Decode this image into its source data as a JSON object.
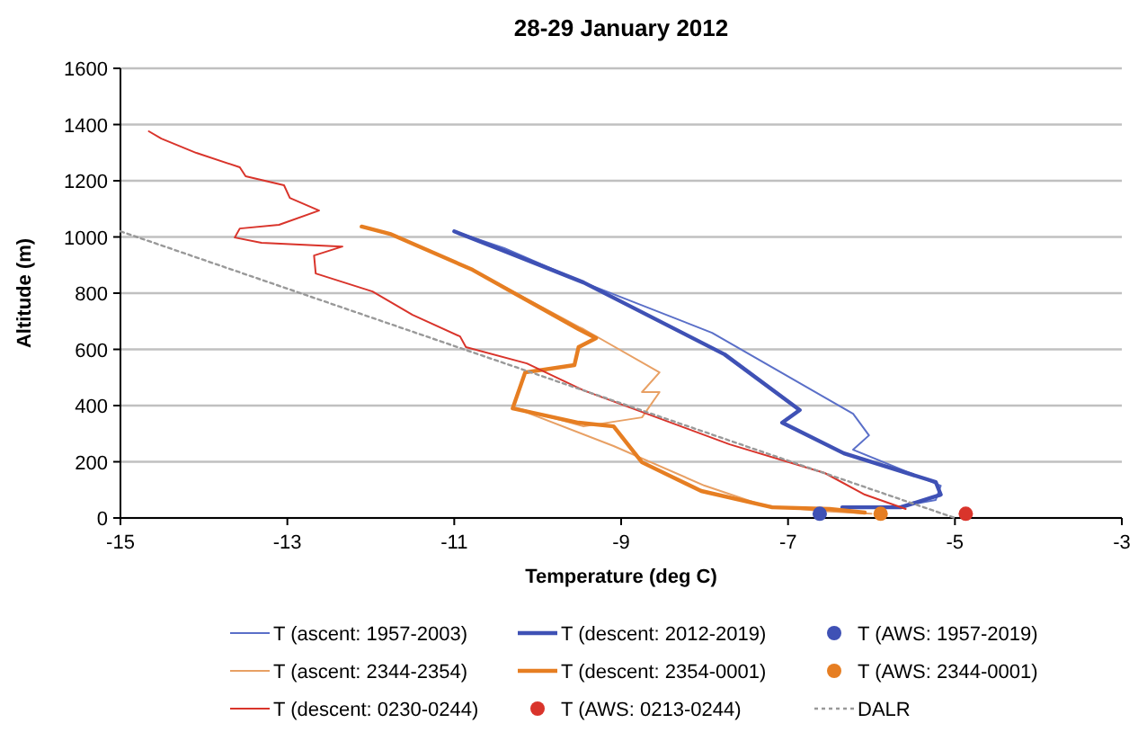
{
  "chart_data": {
    "type": "line",
    "title": "28-29 January 2012",
    "xlabel": "Temperature (deg C)",
    "ylabel": "Altitude (m)",
    "xlim": [
      -15,
      -3
    ],
    "xticks": [
      -15,
      -13,
      -11,
      -9,
      -7,
      -5,
      -3
    ],
    "ylim": [
      0,
      1600
    ],
    "yticks": [
      0,
      200,
      400,
      600,
      800,
      1000,
      1200,
      1400,
      1600
    ],
    "grid": "y",
    "legend": "bottom",
    "line_style": "solid",
    "series": [
      {
        "name": "T (ascent: 1957-2003)",
        "color": "#5a6fc8",
        "x": [
          -11.0,
          -10.4,
          -9.45,
          -7.91,
          -6.22,
          -6.03,
          -6.22,
          -5.17,
          -5.23,
          -5.72
        ],
        "values": [
          1020,
          960,
          838,
          659,
          371,
          294,
          243,
          115,
          64,
          38
        ]
      },
      {
        "name": "T (descent: 2012-2019)",
        "color": "#3f51b5",
        "x": [
          -11.0,
          -10.4,
          -9.45,
          -7.76,
          -6.86,
          -7.07,
          -6.33,
          -5.23,
          -5.17,
          -5.65,
          -6.35
        ],
        "values": [
          1020,
          950,
          838,
          582,
          384,
          339,
          230,
          128,
          83,
          38,
          38
        ]
      },
      {
        "name": "T (AWS: 1957-2019)",
        "type": "scatter",
        "marker": "circle",
        "color": "#3f51b5",
        "x": [
          -6.62
        ],
        "values": [
          15
        ]
      },
      {
        "name": "T (ascent: 2344-2354)",
        "color": "#e8a064",
        "x": [
          -12.11,
          -11.77,
          -10.78,
          -9.51,
          -9.45,
          -8.54,
          -8.75,
          -8.54,
          -8.75,
          -9.45,
          -10.3,
          -9.09,
          -8.0,
          -7.3,
          -6.6,
          -6.0
        ],
        "values": [
          1037,
          1011,
          883,
          680,
          672,
          518,
          448,
          448,
          358,
          326,
          395,
          256,
          115,
          45,
          25,
          15
        ]
      },
      {
        "name": "T (descent: 2354-0001)",
        "color": "#e67e22",
        "x": [
          -12.11,
          -11.77,
          -10.78,
          -9.51,
          -9.3,
          -9.51,
          -9.56,
          -10.15,
          -10.3,
          -9.51,
          -9.09,
          -8.75,
          -8.04,
          -7.19,
          -6.5,
          -6.08
        ],
        "values": [
          1037,
          1011,
          883,
          672,
          640,
          608,
          544,
          518,
          390,
          339,
          326,
          198,
          96,
          38,
          32,
          19
        ]
      },
      {
        "name": "T (AWS: 2344-0001)",
        "type": "scatter",
        "marker": "circle",
        "color": "#e67e22",
        "x": [
          -5.89
        ],
        "values": [
          15
        ]
      },
      {
        "name": "T (descent: 0230-0244)",
        "color": "#d9342b",
        "x": [
          -14.66,
          -14.51,
          -14.09,
          -13.57,
          -13.5,
          -13.04,
          -12.97,
          -12.62,
          -13.1,
          -13.57,
          -13.63,
          -13.31,
          -12.34,
          -12.68,
          -12.66,
          -11.98,
          -11.5,
          -10.93,
          -10.86,
          -10.13,
          -9.45,
          -7.7,
          -6.56,
          -6.08,
          -5.59
        ],
        "values": [
          1376,
          1350,
          1299,
          1248,
          1216,
          1184,
          1139,
          1094,
          1043,
          1030,
          998,
          979,
          966,
          934,
          870,
          806,
          723,
          646,
          608,
          550,
          454,
          262,
          160,
          83,
          32
        ]
      },
      {
        "name": "T (AWS: 0213-0244)",
        "type": "scatter",
        "marker": "circle",
        "color": "#d9342b",
        "x": [
          -4.87
        ],
        "values": [
          15
        ]
      },
      {
        "name": "DALR",
        "color": "#999999",
        "line_style": "dotted",
        "x": [
          -15,
          -5
        ],
        "values": [
          1020,
          0
        ]
      }
    ]
  }
}
